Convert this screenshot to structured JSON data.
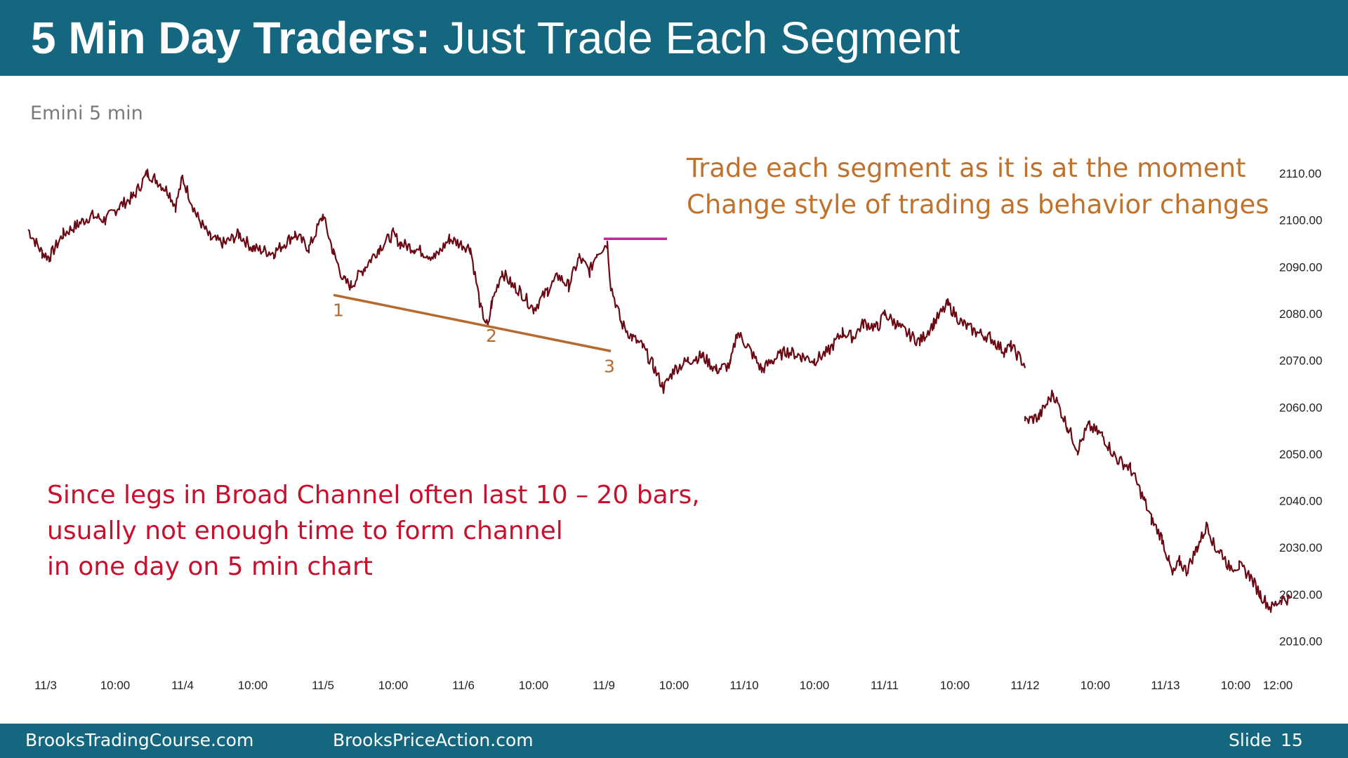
{
  "slide": {
    "title_bold": "5 Min Day Traders:",
    "title_rest": "Just Trade Each Segment",
    "chart_label": "Emini 5 min",
    "note_orange": [
      "Trade each segment as it is at the moment",
      "Change style of trading as behavior changes"
    ],
    "note_red": [
      "Since legs in Broad Channel often last 10 – 20 bars,",
      "usually not enough time to form channel",
      "in one day on 5 min chart"
    ],
    "footer": {
      "site1": "BrooksTradingCourse.com",
      "site2": "BrooksPriceAction.com",
      "slide_label": "Slide",
      "slide_number": "15"
    }
  },
  "colors": {
    "header_bg": "#14677f",
    "price_line": "#6b0a14",
    "trendline": "#b56a2f",
    "magenta_line": "#c8259b",
    "orange_text": "#c0722c",
    "red_text": "#c8102e"
  },
  "chart_data": {
    "type": "line",
    "title": "Emini 5 min",
    "xlabel": "",
    "ylabel": "",
    "ylim": [
      2004,
      2118
    ],
    "y_ticks": [
      "2110.00",
      "2100.00",
      "2090.00",
      "2080.00",
      "2070.00",
      "2060.00",
      "2050.00",
      "2040.00",
      "2030.00",
      "2020.00",
      "2010.00"
    ],
    "x_ticks": [
      {
        "label": "11/3",
        "x": 0.25
      },
      {
        "label": "10:00",
        "x": 1.24
      },
      {
        "label": "11/4",
        "x": 2.2
      },
      {
        "label": "10:00",
        "x": 3.2
      },
      {
        "label": "11/5",
        "x": 4.2
      },
      {
        "label": "10:00",
        "x": 5.2
      },
      {
        "label": "11/6",
        "x": 6.2
      },
      {
        "label": "10:00",
        "x": 7.2
      },
      {
        "label": "11/9",
        "x": 8.2
      },
      {
        "label": "10:00",
        "x": 9.2
      },
      {
        "label": "11/10",
        "x": 10.2
      },
      {
        "label": "10:00",
        "x": 11.2
      },
      {
        "label": "11/11",
        "x": 12.2
      },
      {
        "label": "10:00",
        "x": 13.2
      },
      {
        "label": "11/12",
        "x": 14.2
      },
      {
        "label": "10:00",
        "x": 15.2
      },
      {
        "label": "11/13",
        "x": 16.2
      },
      {
        "label": "10:00",
        "x": 17.2
      },
      {
        "label": "12:00",
        "x": 17.8
      }
    ],
    "series": [
      {
        "x": [
          0,
          0.2,
          0.3,
          0.5,
          0.7,
          0.9,
          1.1,
          1.3,
          1.5,
          1.7,
          1.8,
          2.0,
          2.1,
          2.2,
          2.4,
          2.6,
          2.8,
          3.0,
          3.2,
          3.5,
          3.8,
          4.0,
          4.2,
          4.35,
          4.5,
          4.6,
          4.8,
          5.0,
          5.2,
          5.3,
          5.5,
          5.8,
          6.0,
          6.3,
          6.45,
          6.55,
          6.6,
          6.75,
          6.9,
          7.0,
          7.2,
          7.4,
          7.55,
          7.7,
          7.85,
          8.0,
          8.1,
          8.25,
          8.3,
          8.45,
          8.6,
          8.75,
          8.9,
          9.05,
          9.2,
          9.4,
          9.6,
          9.8,
          10.0,
          10.1,
          10.25,
          10.45,
          10.6,
          10.8,
          11.0,
          11.2,
          11.4,
          11.6,
          11.75,
          11.9,
          12.1,
          12.2,
          12.35,
          12.5,
          12.7,
          12.9,
          13.1,
          13.3,
          13.5,
          13.7,
          13.9,
          14.0,
          14.2,
          14.2001,
          14.4,
          14.6,
          14.8,
          14.95,
          15.1,
          15.3,
          15.5,
          15.7,
          15.9,
          16.0,
          16.15,
          16.25,
          16.3,
          16.4,
          16.5,
          16.65,
          16.8,
          16.9,
          17.0,
          17.1,
          17.25,
          17.4,
          17.55,
          17.7,
          17.85,
          18.0
        ],
        "y": [
          2098,
          2093,
          2092,
          2097,
          2099,
          2101,
          2100,
          2103,
          2105,
          2110,
          2109,
          2106,
          2103,
          2109,
          2101,
          2096,
          2095,
          2097,
          2094,
          2093,
          2097,
          2094,
          2101,
          2093,
          2087,
          2086,
          2090,
          2094,
          2097,
          2095,
          2094,
          2092,
          2096,
          2094,
          2081,
          2077,
          2082,
          2089,
          2086,
          2085,
          2081,
          2085,
          2088,
          2086,
          2092,
          2089,
          2093,
          2095,
          2086,
          2078,
          2075,
          2073,
          2069,
          2064,
          2068,
          2070,
          2071,
          2068,
          2069,
          2076,
          2073,
          2068,
          2070,
          2072,
          2071,
          2070,
          2072,
          2076,
          2075,
          2078,
          2077,
          2080,
          2078,
          2076,
          2074,
          2078,
          2082,
          2078,
          2076,
          2075,
          2072,
          2073,
          2069,
          2057,
          2058,
          2063,
          2056,
          2051,
          2056,
          2054,
          2049,
          2047,
          2040,
          2036,
          2032,
          2027,
          2024,
          2027,
          2025,
          2030,
          2035,
          2030,
          2029,
          2026,
          2026,
          2024,
          2020,
          2017,
          2019,
          2019
        ]
      }
    ],
    "annotations": [
      {
        "type": "trendline",
        "from": [
          4.35,
          2084
        ],
        "to": [
          8.3,
          2072
        ]
      },
      {
        "type": "label",
        "text": "1",
        "x": 4.42,
        "y": 2079.5
      },
      {
        "type": "label",
        "text": "2",
        "x": 6.6,
        "y": 2074
      },
      {
        "type": "label",
        "text": "3",
        "x": 8.28,
        "y": 2067.5
      },
      {
        "type": "hline",
        "from": [
          8.2,
          2096
        ],
        "to": [
          9.1,
          2096
        ]
      }
    ]
  }
}
